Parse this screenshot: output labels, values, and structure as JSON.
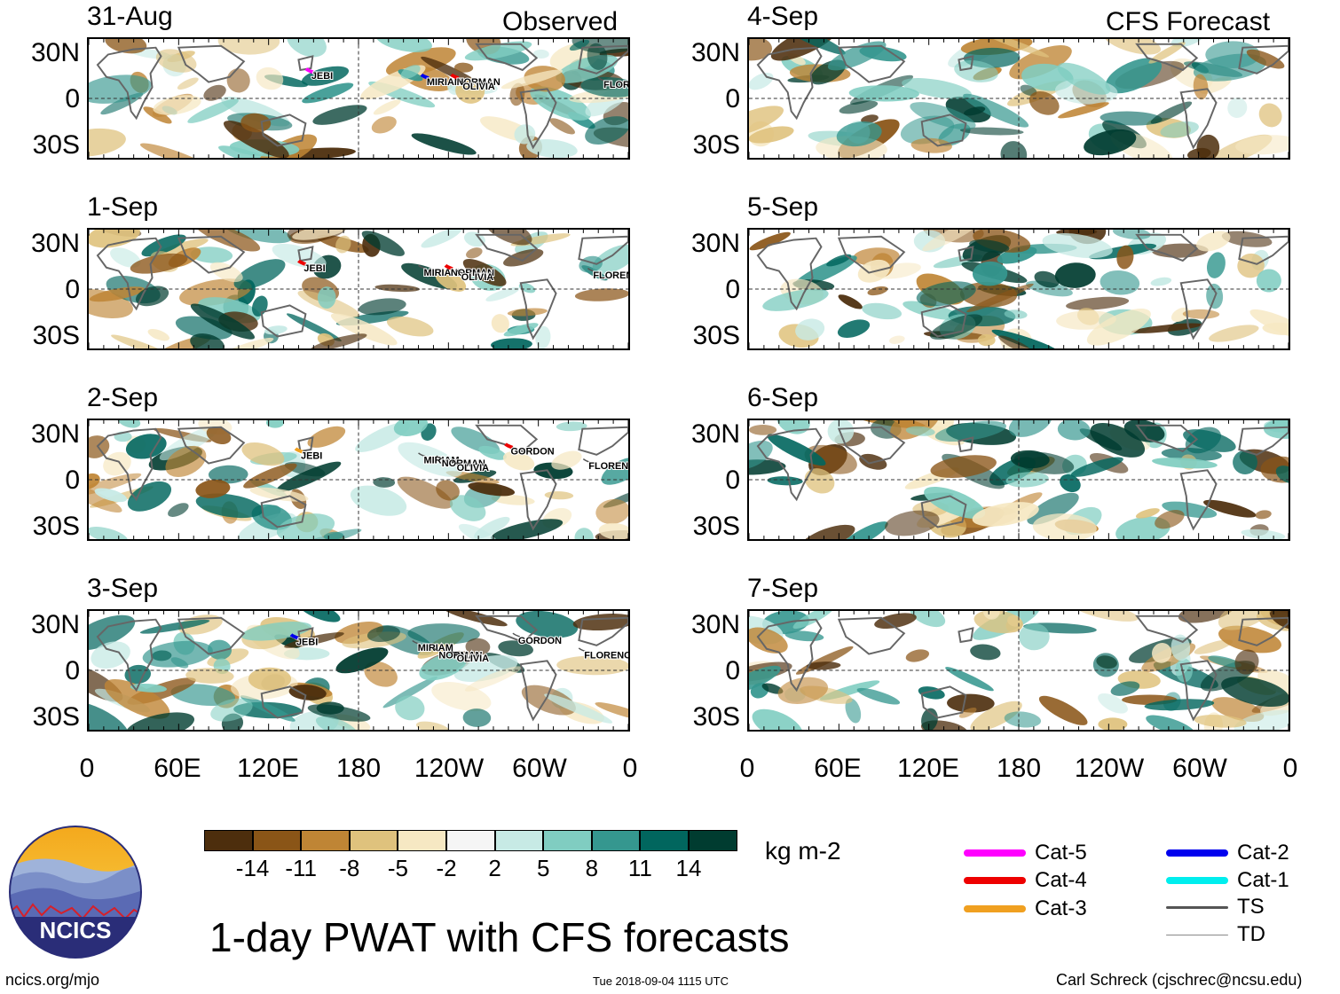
{
  "headers": {
    "observed": "Observed",
    "forecast": "CFS Forecast"
  },
  "lat_ticks": [
    "30N",
    "0",
    "30S"
  ],
  "lon_ticks": [
    "0",
    "60E",
    "120E",
    "180",
    "120W",
    "60W",
    "0"
  ],
  "chart_data": [
    {
      "type": "heatmap",
      "group": "observed",
      "date": "31-Aug",
      "storms": [
        {
          "name": "JEBI",
          "lon": 145,
          "lat": 20,
          "category": "Cat-5"
        },
        {
          "name": "MIRIAM",
          "lon": -138,
          "lat": 16,
          "category": "Cat-2"
        },
        {
          "name": "NORMAN",
          "lon": -118,
          "lat": 16,
          "category": "Cat-4"
        },
        {
          "name": "OLIVIA",
          "lon": -114,
          "lat": 13,
          "category": "TS"
        },
        {
          "name": "FLORENCE",
          "lon": -20,
          "lat": 14,
          "category": "TS"
        }
      ]
    },
    {
      "type": "heatmap",
      "group": "observed",
      "date": "1-Sep",
      "storms": [
        {
          "name": "JEBI",
          "lon": 140,
          "lat": 19,
          "category": "Cat-4"
        },
        {
          "name": "MIRIAM",
          "lon": -140,
          "lat": 16,
          "category": "TS"
        },
        {
          "name": "NORMAN",
          "lon": -122,
          "lat": 16,
          "category": "Cat-4"
        },
        {
          "name": "OLIVIA",
          "lon": -115,
          "lat": 13,
          "category": "TS"
        },
        {
          "name": "FLORENCE",
          "lon": -27,
          "lat": 14,
          "category": "TS"
        }
      ]
    },
    {
      "type": "heatmap",
      "group": "observed",
      "date": "2-Sep",
      "storms": [
        {
          "name": "JEBI",
          "lon": 138,
          "lat": 21,
          "category": "Cat-3"
        },
        {
          "name": "MIRIAM",
          "lon": -140,
          "lat": 18,
          "category": "TS"
        },
        {
          "name": "NORMAN",
          "lon": -128,
          "lat": 16,
          "category": "TS"
        },
        {
          "name": "OLIVIA",
          "lon": -118,
          "lat": 13,
          "category": "TS"
        },
        {
          "name": "GORDON",
          "lon": -82,
          "lat": 24,
          "category": "Cat-4"
        },
        {
          "name": "FLORENCE",
          "lon": -30,
          "lat": 14,
          "category": "TS"
        }
      ]
    },
    {
      "type": "heatmap",
      "group": "observed",
      "date": "3-Sep",
      "storms": [
        {
          "name": "JEBI",
          "lon": 135,
          "lat": 24,
          "category": "Cat-2"
        },
        {
          "name": "MIRIAM",
          "lon": -144,
          "lat": 20,
          "category": "TS"
        },
        {
          "name": "NORMAN",
          "lon": -130,
          "lat": 15,
          "category": "TS"
        },
        {
          "name": "OLIVIA",
          "lon": -118,
          "lat": 13,
          "category": "TS"
        },
        {
          "name": "GORDON",
          "lon": -77,
          "lat": 25,
          "category": "TS"
        },
        {
          "name": "FLORENCE",
          "lon": -33,
          "lat": 15,
          "category": "TS"
        }
      ]
    },
    {
      "type": "heatmap",
      "group": "forecast",
      "date": "4-Sep",
      "storms": []
    },
    {
      "type": "heatmap",
      "group": "forecast",
      "date": "5-Sep",
      "storms": []
    },
    {
      "type": "heatmap",
      "group": "forecast",
      "date": "6-Sep",
      "storms": []
    },
    {
      "type": "heatmap",
      "group": "forecast",
      "date": "7-Sep",
      "storms": []
    }
  ],
  "colorbar": {
    "unit": "kg m-2",
    "tick_labels": [
      "-14",
      "-11",
      "-8",
      "-5",
      "-2",
      "2",
      "5",
      "8",
      "11",
      "14"
    ],
    "colors": [
      "#4d2e0d",
      "#8a5517",
      "#bf8535",
      "#dfc27d",
      "#f6e8c3",
      "#f5f5f5",
      "#c7eae5",
      "#80cdc1",
      "#35978f",
      "#01665e",
      "#003c30"
    ]
  },
  "legend": {
    "items": [
      {
        "label": "Cat-5",
        "color": "#ff00ff"
      },
      {
        "label": "Cat-4",
        "color": "#ee0000"
      },
      {
        "label": "Cat-3",
        "color": "#f0a020"
      },
      {
        "label": "Cat-2",
        "color": "#0000ee"
      },
      {
        "label": "Cat-1",
        "color": "#00eeee"
      },
      {
        "label": "TS",
        "color": "#555555"
      },
      {
        "label": "TD",
        "color": "#888888"
      }
    ]
  },
  "title": "1-day PWAT with CFS forecasts",
  "logo_text": "NCICS",
  "footer": {
    "url": "ncics.org/mjo",
    "timestamp": "Tue 2018-09-04 1115 UTC",
    "credit": "Carl Schreck (cjschrec@ncsu.edu)"
  }
}
